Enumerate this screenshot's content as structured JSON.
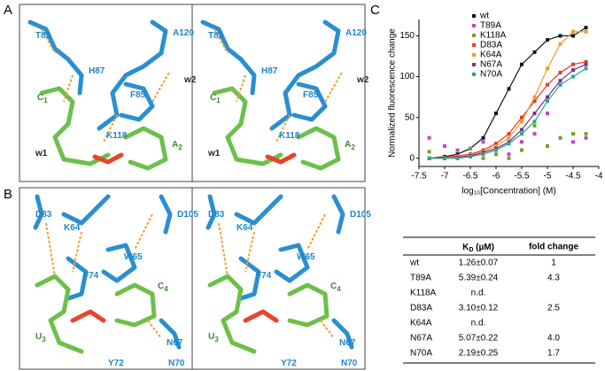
{
  "panels": {
    "a": "A",
    "b": "B",
    "c": "C"
  },
  "structure_a": {
    "labels": [
      {
        "text": "T89",
        "kind": "res"
      },
      {
        "text": "H87",
        "kind": "res"
      },
      {
        "text": "A120",
        "kind": "res"
      },
      {
        "text": "F85",
        "kind": "res"
      },
      {
        "text": "w2",
        "kind": "water"
      },
      {
        "text": "C",
        "sub": "1",
        "kind": "nuc"
      },
      {
        "text": "K118",
        "kind": "res"
      },
      {
        "text": "A",
        "sub": "2",
        "kind": "nuc"
      },
      {
        "text": "w1",
        "kind": "water"
      }
    ]
  },
  "structure_b": {
    "labels": [
      {
        "text": "D83",
        "kind": "res"
      },
      {
        "text": "K64",
        "kind": "res"
      },
      {
        "text": "D105",
        "kind": "res"
      },
      {
        "text": "W65",
        "kind": "res"
      },
      {
        "text": "F74",
        "kind": "res"
      },
      {
        "text": "C",
        "sub": "4",
        "kind": "nuc"
      },
      {
        "text": "U",
        "sub": "3",
        "kind": "nuc"
      },
      {
        "text": "N67",
        "kind": "res"
      },
      {
        "text": "Y72",
        "kind": "res"
      },
      {
        "text": "N70",
        "kind": "res"
      }
    ]
  },
  "chart_data": {
    "type": "scatter",
    "x_label": "log₁₀[Concentration] (M)",
    "y_label": "Normalized fluorescence change",
    "x": [
      -7.3,
      -7,
      -6.75,
      -6.5,
      -6.25,
      -6,
      -5.75,
      -5.5,
      -5.25,
      -5,
      -4.75,
      -4.5,
      -4.25
    ],
    "series": [
      {
        "name": "wt",
        "color": "#111111",
        "curve": true,
        "values": [
          0,
          2,
          5,
          12,
          25,
          55,
          85,
          115,
          130,
          145,
          150,
          150,
          160
        ]
      },
      {
        "name": "T89A",
        "color": "#c245c8",
        "curve": false,
        "values": [
          25,
          15,
          10,
          5,
          20,
          10,
          5,
          20,
          30,
          55,
          25,
          20,
          25
        ]
      },
      {
        "name": "K118A",
        "color": "#7f9a2b",
        "curve": false,
        "values": [
          8,
          0,
          0,
          12,
          0,
          5,
          0,
          10,
          40,
          15,
          25,
          30,
          30
        ]
      },
      {
        "name": "D83A",
        "color": "#e23a2a",
        "curve": true,
        "values": [
          0,
          1,
          3,
          5,
          10,
          18,
          30,
          50,
          70,
          90,
          105,
          115,
          118
        ]
      },
      {
        "name": "K64A",
        "color": "#f39a2b",
        "curve": true,
        "values": [
          0,
          0,
          2,
          4,
          8,
          15,
          25,
          45,
          75,
          110,
          140,
          155,
          155
        ]
      },
      {
        "name": "N67A",
        "color": "#7b2f8e",
        "curve": true,
        "values": [
          0,
          0,
          1,
          3,
          7,
          12,
          20,
          35,
          55,
          75,
          95,
          108,
          115
        ]
      },
      {
        "name": "N70A",
        "color": "#2ba88c",
        "curve": true,
        "values": [
          0,
          0,
          0,
          2,
          5,
          10,
          18,
          30,
          45,
          70,
          90,
          100,
          110
        ]
      }
    ],
    "xlim": [
      -7.5,
      -4
    ],
    "xticks": [
      -7.5,
      -7,
      -6.5,
      -6,
      -5.5,
      -5,
      -4.5,
      -4
    ],
    "ylim": [
      -10,
      170
    ],
    "yticks": [
      0,
      50,
      100,
      150
    ]
  },
  "table": {
    "kd_header": {
      "main": "K",
      "sub": "D",
      "unit": " (µM)"
    },
    "fold_header": "fold change",
    "rows": [
      [
        "wt",
        "1.26±0.07",
        "1"
      ],
      [
        "T89A",
        "5.39±0.24",
        "4.3"
      ],
      [
        "K118A",
        "n.d."
      ],
      [
        "D83A",
        "3.10±0.12",
        "2.5"
      ],
      [
        "K64A",
        "n.d."
      ],
      [
        "N67A",
        "5.07±0.22",
        "4.0"
      ],
      [
        "N70A",
        "2.19±0.25",
        "1.7"
      ]
    ]
  }
}
